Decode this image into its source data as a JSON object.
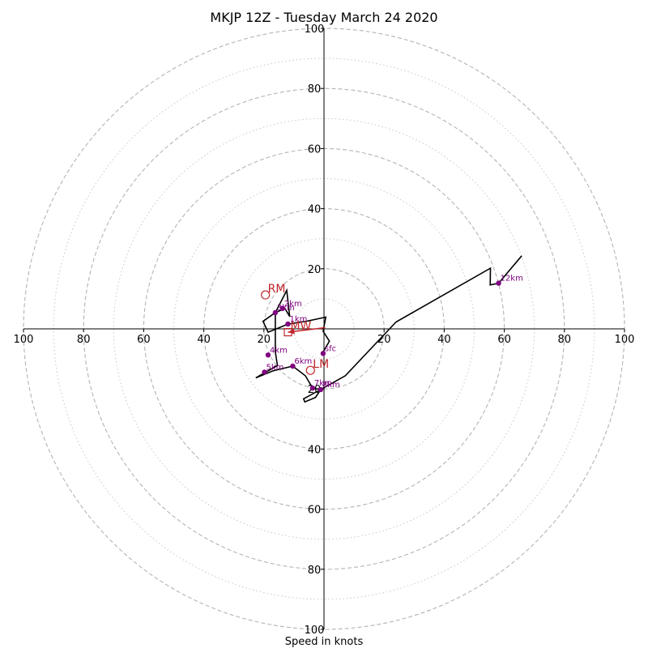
{
  "chart_data": {
    "type": "hodograph",
    "title": "MKJP 12Z - Tuesday March 24 2020",
    "xlabel": "Speed in knots",
    "ylabel": "",
    "xlim": [
      -100,
      100
    ],
    "ylim": [
      -100,
      100
    ],
    "x_ticks": [
      -100,
      -80,
      -60,
      -40,
      -20,
      20,
      40,
      60,
      80,
      100
    ],
    "x_tick_labels": [
      "100",
      "80",
      "60",
      "40",
      "20",
      "20",
      "40",
      "60",
      "80",
      "100"
    ],
    "y_ticks": [
      100,
      80,
      60,
      40,
      20,
      -20,
      -40,
      -60,
      -80,
      -100
    ],
    "y_tick_labels": [
      "100",
      "80",
      "60",
      "40",
      "20",
      "20",
      "40",
      "60",
      "80",
      "100"
    ],
    "grid": true,
    "rings_dashed": [
      20,
      40,
      60,
      80,
      100
    ],
    "rings_dotted": [
      10,
      30,
      50,
      70,
      90
    ],
    "trace_color": "#000000",
    "height_marker_color": "#800080",
    "motion_color": "#c0262b",
    "trace": [
      [
        -0.6,
        -8.2
      ],
      [
        1.8,
        -4.1
      ],
      [
        -0.3,
        -0.8
      ],
      [
        0.6,
        3.9
      ],
      [
        -5.5,
        2.6
      ],
      [
        -12.0,
        1.6
      ],
      [
        -18.6,
        -1.1
      ],
      [
        -20.3,
        2.5
      ],
      [
        -16.2,
        5.4
      ],
      [
        -13.0,
        6.8
      ],
      [
        -11.4,
        4.1
      ],
      [
        -12.4,
        12.8
      ],
      [
        -16.2,
        5.4
      ],
      [
        -16.2,
        -7.6
      ],
      [
        -15.5,
        -12.2
      ],
      [
        -22.7,
        -16.3
      ],
      [
        -17.0,
        -14.0
      ],
      [
        -10.4,
        -12.4
      ],
      [
        -6.2,
        -15.6
      ],
      [
        -3.8,
        -19.7
      ],
      [
        -1.1,
        -20.2
      ],
      [
        -6.8,
        -23.3
      ],
      [
        -6.4,
        -24.3
      ],
      [
        -2.8,
        -22.8
      ],
      [
        -1.1,
        -20.2
      ],
      [
        7.1,
        -15.6
      ],
      [
        24.0,
        2.3
      ],
      [
        55.4,
        20.2
      ],
      [
        55.3,
        14.6
      ],
      [
        58.1,
        15.2
      ],
      [
        65.8,
        24.3
      ],
      [
        58.1,
        15.2
      ]
    ],
    "height_markers": [
      {
        "label": "sfc",
        "u": -0.3,
        "v": -8.2
      },
      {
        "label": "1km",
        "u": -12.0,
        "v": 1.6
      },
      {
        "label": "2km",
        "u": -13.8,
        "v": 6.8
      },
      {
        "label": "3km",
        "u": -16.2,
        "v": 5.4
      },
      {
        "label": "4km",
        "u": -18.6,
        "v": -8.7
      },
      {
        "label": "5km",
        "u": -19.8,
        "v": -14.4
      },
      {
        "label": "6km",
        "u": -10.4,
        "v": -12.4
      },
      {
        "label": "7km",
        "u": -3.8,
        "v": -19.7
      },
      {
        "label": "8km",
        "u": -1.1,
        "v": -20.2
      },
      {
        "label": "12km",
        "u": 58.1,
        "v": 15.2
      }
    ],
    "storm_motion": [
      {
        "label": "RM",
        "u": -19.5,
        "v": 11.3,
        "marker": "circle"
      },
      {
        "label": "LM",
        "u": -4.5,
        "v": -13.8,
        "marker": "circle"
      },
      {
        "label": "MW",
        "u": -12.0,
        "v": -1.1,
        "marker": "square"
      }
    ],
    "mean_wind_arrow": {
      "from": [
        -12.0,
        -1.1
      ],
      "to": [
        0.4,
        0.4
      ]
    }
  }
}
